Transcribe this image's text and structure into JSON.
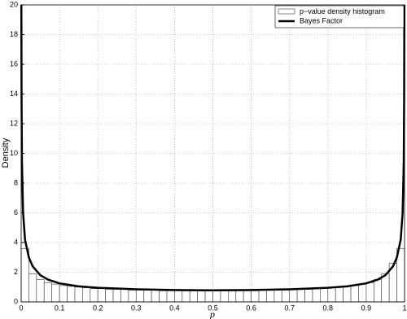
{
  "chart_data": {
    "type": "histogram",
    "name": "p−value density histogram",
    "color": "#ffffff",
    "edgecolor": "#555555",
    "bins": [
      0,
      0.02,
      0.04,
      0.06,
      0.08,
      0.1,
      0.12,
      0.14,
      0.16,
      0.18,
      0.2,
      0.22,
      0.24,
      0.26,
      0.28,
      0.3,
      0.32,
      0.34,
      0.36,
      0.38,
      0.4,
      0.42,
      0.44,
      0.46,
      0.48,
      0.5,
      0.52,
      0.54,
      0.56,
      0.58,
      0.6,
      0.62,
      0.64,
      0.66,
      0.68,
      0.7,
      0.72,
      0.74,
      0.76,
      0.78,
      0.8,
      0.82,
      0.84,
      0.86,
      0.88,
      0.9,
      0.92,
      0.94,
      0.96,
      0.98,
      1
    ],
    "values": [
      3.6,
      1.9,
      1.5,
      1.3,
      1.2,
      1.1,
      1.05,
      1.0,
      0.95,
      0.9,
      0.9,
      0.85,
      0.85,
      0.85,
      0.8,
      0.8,
      0.8,
      0.8,
      0.75,
      0.75,
      0.75,
      0.75,
      0.75,
      0.75,
      0.75,
      0.75,
      0.75,
      0.75,
      0.75,
      0.75,
      0.75,
      0.8,
      0.8,
      0.8,
      0.8,
      0.85,
      0.85,
      0.85,
      0.9,
      0.9,
      0.95,
      1.0,
      1.05,
      1.1,
      1.2,
      1.3,
      1.5,
      1.9,
      2.6,
      3.6
    ],
    "overlay": {
      "type": "line",
      "name": "Bayes Factor",
      "color": "#000000",
      "x": [
        0.0005,
        0.001,
        0.002,
        0.005,
        0.01,
        0.02,
        0.03,
        0.05,
        0.07,
        0.1,
        0.15,
        0.2,
        0.3,
        0.4,
        0.5,
        0.6,
        0.7,
        0.8,
        0.85,
        0.9,
        0.93,
        0.95,
        0.97,
        0.98,
        0.99,
        0.995,
        0.998,
        0.999,
        0.9995
      ],
      "values": [
        20,
        14,
        9.5,
        6,
        4.2,
        3,
        2.4,
        1.8,
        1.5,
        1.25,
        1.05,
        0.95,
        0.85,
        0.8,
        0.78,
        0.8,
        0.85,
        0.95,
        1.05,
        1.25,
        1.5,
        1.8,
        2.4,
        3,
        4.2,
        6,
        9.5,
        14,
        20
      ]
    },
    "xlabel": "p",
    "ylabel": "Density",
    "xlim": [
      0,
      1
    ],
    "ylim": [
      0,
      20
    ],
    "xticks": [
      0,
      0.1,
      0.2,
      0.3,
      0.4,
      0.5,
      0.6,
      0.7,
      0.8,
      0.9,
      1
    ],
    "yticks": [
      0,
      2,
      4,
      6,
      8,
      10,
      12,
      14,
      16,
      18,
      20
    ],
    "grid": true,
    "legend": "upper right"
  }
}
